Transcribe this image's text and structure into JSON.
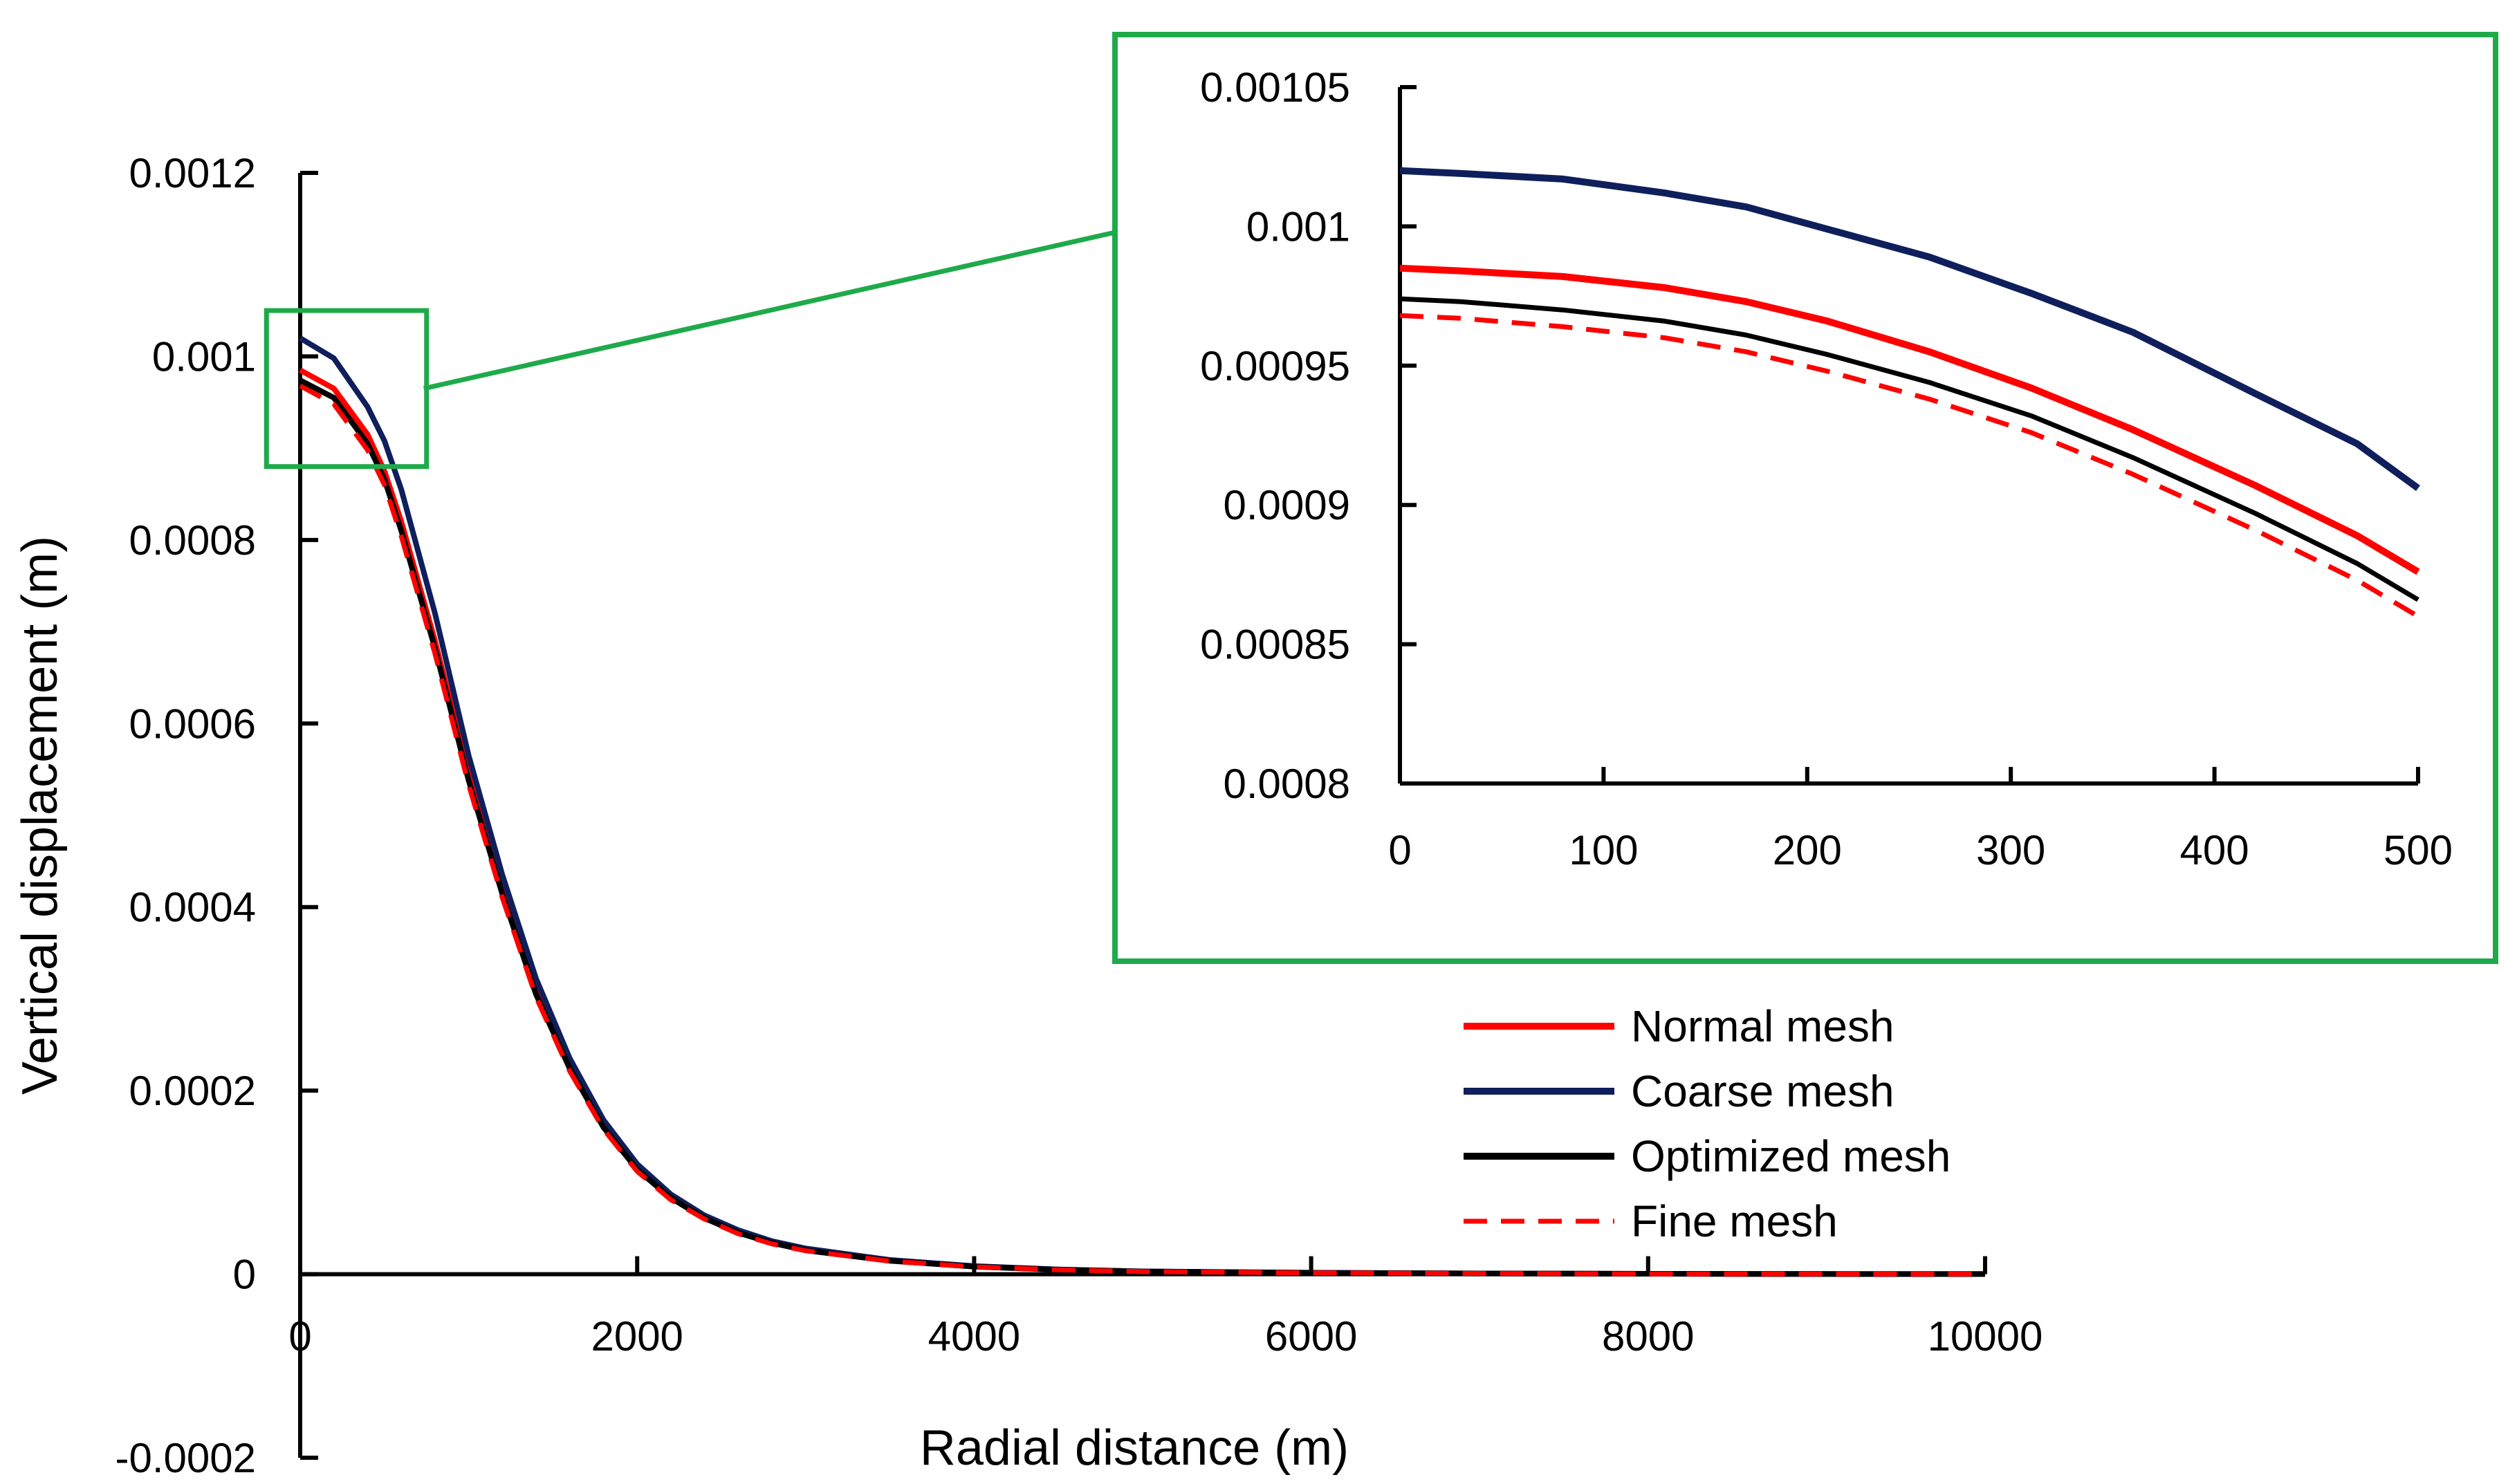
{
  "chart_data": [
    {
      "id": "main",
      "type": "line",
      "xlabel": "Radial distance (m)",
      "ylabel": "Vertical displacement (m)",
      "xlim": [
        0,
        10000
      ],
      "ylim": [
        -0.0002,
        0.0012
      ],
      "xticks": [
        0,
        2000,
        4000,
        6000,
        8000,
        10000
      ],
      "yticks": [
        -0.0002,
        0,
        0.0002,
        0.0004,
        0.0006,
        0.0008,
        0.001,
        0.0012
      ],
      "xtick_labels": [
        "0",
        "2000",
        "4000",
        "6000",
        "8000",
        "10000"
      ],
      "ytick_labels": [
        "-0.0002",
        "0",
        "0.0002",
        "0.0004",
        "0.0006",
        "0.0008",
        "0.001",
        "0.0012"
      ],
      "series": [
        {
          "name": "Normal mesh",
          "color": "#ff0000",
          "dash": "solid",
          "x": [
            0,
            200,
            400,
            500,
            600,
            800,
            1000,
            1200,
            1400,
            1600,
            1800,
            2000,
            2200,
            2400,
            2600,
            2800,
            3000,
            3500,
            4000,
            4500,
            5000,
            6000,
            7000,
            8000,
            9000,
            10000
          ],
          "y": [
            0.000985,
            0.000965,
            0.000915,
            0.000875,
            0.00082,
            0.00069,
            0.000545,
            0.00042,
            0.00031,
            0.000228,
            0.000162,
            0.000116,
            8.4e-05,
            6.2e-05,
            4.6e-05,
            3.5e-05,
            2.7e-05,
            1.5e-05,
            8.5e-06,
            5e-06,
            3e-06,
            1.5e-06,
            8e-07,
            4e-07,
            2e-07,
            1e-07
          ]
        },
        {
          "name": "Coarse  mesh",
          "color": "#0f1f5c",
          "dash": "solid",
          "x": [
            0,
            200,
            400,
            500,
            600,
            800,
            1000,
            1200,
            1400,
            1600,
            1800,
            2000,
            2200,
            2400,
            2600,
            2800,
            3000,
            3500,
            4000,
            4500,
            5000,
            6000,
            7000,
            8000,
            9000,
            10000
          ],
          "y": [
            0.00102,
            0.000998,
            0.000945,
            0.000908,
            0.000855,
            0.00072,
            0.000565,
            0.000435,
            0.000322,
            0.000235,
            0.000168,
            0.00012,
            8.7e-05,
            6.4e-05,
            4.8e-05,
            3.6e-05,
            2.8e-05,
            1.55e-05,
            8.8e-06,
            5.2e-06,
            3.1e-06,
            1.6e-06,
            8e-07,
            4e-07,
            2e-07,
            1e-07
          ]
        },
        {
          "name": "Optimized mesh",
          "color": "#000000",
          "dash": "solid",
          "x": [
            0,
            200,
            400,
            500,
            600,
            800,
            1000,
            1200,
            1400,
            1600,
            1800,
            2000,
            2200,
            2400,
            2600,
            2800,
            3000,
            3500,
            4000,
            4500,
            5000,
            6000,
            7000,
            8000,
            9000,
            10000
          ],
          "y": [
            0.000974,
            0.000955,
            0.000905,
            0.000866,
            0.00081,
            0.000682,
            0.000538,
            0.000414,
            0.000305,
            0.000224,
            0.00016,
            0.000114,
            8.3e-05,
            6.1e-05,
            4.5e-05,
            3.4e-05,
            2.6e-05,
            1.45e-05,
            8.2e-06,
            4.8e-06,
            2.9e-06,
            1.4e-06,
            7e-07,
            4e-07,
            2e-07,
            1e-07
          ]
        },
        {
          "name": "Fine mesh",
          "color": "#ff0000",
          "dash": "dashed",
          "x": [
            0,
            200,
            400,
            500,
            600,
            800,
            1000,
            1200,
            1400,
            1600,
            1800,
            2000,
            2200,
            2400,
            2600,
            2800,
            3000,
            3500,
            4000,
            4500,
            5000,
            6000,
            7000,
            8000,
            9000,
            10000
          ],
          "y": [
            0.000968,
            0.000948,
            0.000898,
            0.00086,
            0.000804,
            0.000676,
            0.000533,
            0.00041,
            0.000302,
            0.000221,
            0.000158,
            0.000112,
            8.1e-05,
            6e-05,
            4.4e-05,
            3.3e-05,
            2.55e-05,
            1.42e-05,
            8e-06,
            4.7e-06,
            2.8e-06,
            1.4e-06,
            7e-07,
            3e-07,
            2e-07,
            1e-07
          ]
        }
      ],
      "zoom_box": {
        "x": [
          -200,
          750
        ],
        "y": [
          0.00088,
          0.00105
        ]
      },
      "legend_position": "bottom-right"
    },
    {
      "id": "inset",
      "type": "line",
      "xlim": [
        0,
        500
      ],
      "ylim": [
        0.0008,
        0.00105
      ],
      "xticks": [
        0,
        100,
        200,
        300,
        400,
        500
      ],
      "yticks": [
        0.0008,
        0.00085,
        0.0009,
        0.00095,
        0.001,
        0.00105
      ],
      "xtick_labels": [
        "0",
        "100",
        "200",
        "300",
        "400",
        "500"
      ],
      "ytick_labels": [
        "0.0008",
        "0.00085",
        "0.0009",
        "0.00095",
        "0.001",
        "0.00105"
      ],
      "series": [
        {
          "name": "Normal mesh",
          "color": "#ff0000",
          "dash": "solid",
          "x": [
            0,
            30,
            80,
            130,
            170,
            210,
            260,
            310,
            360,
            420,
            470,
            500
          ],
          "y": [
            0.000985,
            0.000984,
            0.000982,
            0.000978,
            0.000973,
            0.000966,
            0.000955,
            0.000942,
            0.000927,
            0.000907,
            0.000889,
            0.000876
          ]
        },
        {
          "name": "Coarse  mesh",
          "color": "#0f1f5c",
          "dash": "solid",
          "x": [
            0,
            30,
            80,
            130,
            170,
            210,
            260,
            310,
            360,
            420,
            470,
            500
          ],
          "y": [
            0.00102,
            0.001019,
            0.001017,
            0.001012,
            0.001007,
            0.000999,
            0.000989,
            0.000976,
            0.000962,
            0.00094,
            0.000922,
            0.000906
          ]
        },
        {
          "name": "Optimized mesh",
          "color": "#000000",
          "dash": "solid",
          "x": [
            0,
            30,
            80,
            130,
            170,
            210,
            260,
            310,
            360,
            420,
            470,
            500
          ],
          "y": [
            0.000974,
            0.000973,
            0.00097,
            0.000966,
            0.000961,
            0.000954,
            0.000944,
            0.000932,
            0.000917,
            0.000897,
            0.000879,
            0.000866
          ]
        },
        {
          "name": "Fine mesh",
          "color": "#ff0000",
          "dash": "dashed",
          "x": [
            0,
            30,
            80,
            130,
            170,
            210,
            260,
            310,
            360,
            420,
            470,
            500
          ],
          "y": [
            0.000968,
            0.000967,
            0.000964,
            0.00096,
            0.000955,
            0.000948,
            0.000938,
            0.000926,
            0.000911,
            0.000891,
            0.000873,
            0.00086
          ]
        }
      ]
    }
  ],
  "legend": [
    {
      "label": "Normal mesh",
      "color": "#ff0000",
      "dash": "solid"
    },
    {
      "label": "Coarse  mesh",
      "color": "#0f1f5c",
      "dash": "solid"
    },
    {
      "label": "Optimized mesh",
      "color": "#000000",
      "dash": "solid"
    },
    {
      "label": "Fine mesh",
      "color": "#ff0000",
      "dash": "dashed"
    }
  ],
  "zoom_color": "#1faa4a"
}
